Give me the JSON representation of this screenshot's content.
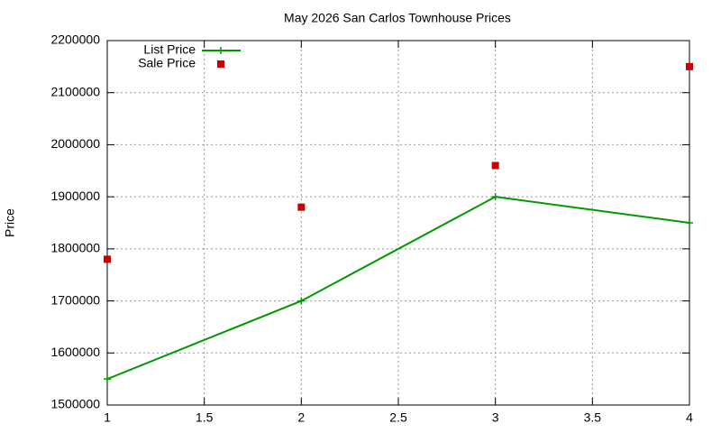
{
  "chart_data": {
    "type": "line",
    "title": "May 2026 San Carlos Townhouse Prices",
    "y_label": "Price",
    "x": [
      1,
      2,
      3,
      4
    ],
    "series": [
      {
        "name": "List Price",
        "color": "#009900",
        "values": [
          1550000,
          1700000,
          1900000,
          1850000
        ],
        "line": true,
        "marker": "plus"
      },
      {
        "name": "Sale Price",
        "color": "#cc0000",
        "values": [
          1780000,
          1880000,
          1960000,
          2150000
        ],
        "line": false,
        "marker": "square"
      }
    ],
    "xlim": [
      1,
      4
    ],
    "xticks": [
      1,
      1.5,
      2,
      2.5,
      3,
      3.5,
      4
    ],
    "ylim": [
      1500000,
      2200000
    ],
    "yticks": [
      1500000,
      1600000,
      1700000,
      1800000,
      1900000,
      2000000,
      2100000,
      2200000
    ],
    "grid": true,
    "legend": "top-left"
  }
}
